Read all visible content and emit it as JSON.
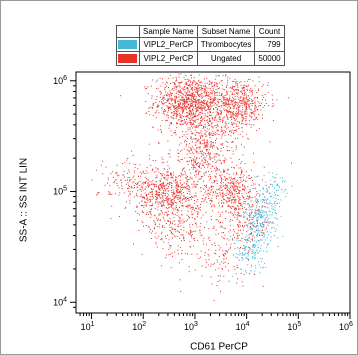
{
  "legend": {
    "headers": [
      "",
      "Sample Name",
      "Subset Name",
      "Count"
    ],
    "rows": [
      {
        "color": "#45b7d9",
        "sample": "VIPL2_PerCP",
        "subset": "Thrombocytes",
        "count": "799"
      },
      {
        "color": "#e8322c",
        "sample": "VIPL2_PerCP",
        "subset": "Ungated",
        "count": "50000"
      }
    ]
  },
  "chart_data": {
    "type": "scatter",
    "xlabel": "CD61 PerCP",
    "ylabel": "SS-A :: SS INT LIN",
    "x_scale": "log",
    "y_scale": "log",
    "xlim": [
      5,
      1000000
    ],
    "ylim": [
      8000,
      1200000
    ],
    "x_ticks": [
      {
        "value": 10,
        "base": "10",
        "exp": "1"
      },
      {
        "value": 100,
        "base": "10",
        "exp": "2"
      },
      {
        "value": 1000,
        "base": "10",
        "exp": "3"
      },
      {
        "value": 10000,
        "base": "10",
        "exp": "4"
      },
      {
        "value": 100000,
        "base": "10",
        "exp": "5"
      },
      {
        "value": 1000000,
        "base": "10",
        "exp": "6"
      }
    ],
    "y_ticks": [
      {
        "value": 10000,
        "base": "10",
        "exp": "4"
      },
      {
        "value": 100000,
        "base": "10",
        "exp": "5"
      },
      {
        "value": 1000000,
        "base": "10",
        "exp": "6"
      }
    ],
    "series": [
      {
        "name": "Ungated",
        "color": "#e8322c",
        "count": 50000,
        "clusters": [
          {
            "x": 700,
            "y": 650000,
            "weight": 0.24
          },
          {
            "x": 6000,
            "y": 630000,
            "weight": 0.17
          },
          {
            "x": 300,
            "y": 100000,
            "weight": 0.16
          },
          {
            "x": 5000,
            "y": 100000,
            "weight": 0.12
          },
          {
            "x": 1500,
            "y": 220000,
            "weight": 0.08
          },
          {
            "x": 400,
            "y": 45000,
            "weight": 0.06
          },
          {
            "x": 8000,
            "y": 50000,
            "weight": 0.05
          },
          {
            "x": 1500,
            "y": 350000,
            "weight": 0.05
          },
          {
            "x": 3000,
            "y": 25000,
            "weight": 0.03
          },
          {
            "x": 60,
            "y": 120000,
            "weight": 0.04
          }
        ]
      },
      {
        "name": "Thrombocytes",
        "color": "#45b7d9",
        "count": 799,
        "clusters": [
          {
            "x": 18000,
            "y": 55000,
            "weight": 0.55
          },
          {
            "x": 12000,
            "y": 28000,
            "weight": 0.25
          },
          {
            "x": 30000,
            "y": 100000,
            "weight": 0.2
          }
        ]
      }
    ]
  }
}
